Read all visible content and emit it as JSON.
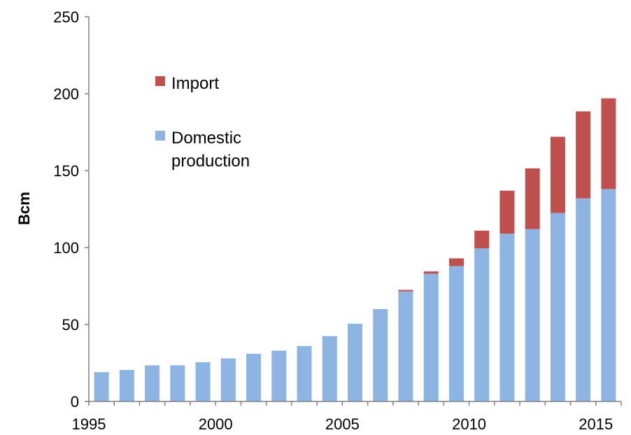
{
  "chart_data": {
    "type": "bar",
    "stacked": true,
    "ylabel": "Bcm",
    "xlabel": "",
    "title": "",
    "ylim": [
      0,
      250
    ],
    "yticks": [
      0,
      50,
      100,
      150,
      200,
      250
    ],
    "xtick_labels": [
      "1995",
      "2000",
      "2005",
      "2010",
      "2015"
    ],
    "categories": [
      "1995",
      "1996",
      "1997",
      "1998",
      "1999",
      "2000",
      "2001",
      "2002",
      "2003",
      "2004",
      "2005",
      "2006",
      "2007",
      "2008",
      "2009",
      "2010",
      "2011",
      "2012",
      "2013",
      "2014",
      "2015"
    ],
    "grid": false,
    "legend_position": "top-left",
    "series": [
      {
        "name": "Domestic production",
        "legend_lines": [
          "Domestic",
          "production"
        ],
        "color": "#8DB4E2",
        "values": [
          19,
          20.5,
          23.5,
          23.5,
          25.5,
          28,
          31,
          33,
          36,
          42.5,
          50.5,
          60,
          71.5,
          83,
          88,
          99.5,
          109,
          112,
          122.5,
          132,
          138
        ]
      },
      {
        "name": "Import",
        "legend_lines": [
          "Import"
        ],
        "color": "#C0504D",
        "values": [
          0,
          0,
          0,
          0,
          0,
          0,
          0,
          0,
          0,
          0,
          0,
          0,
          1,
          1.5,
          5,
          11.5,
          28,
          39.5,
          49.5,
          56.5,
          59
        ]
      }
    ]
  }
}
